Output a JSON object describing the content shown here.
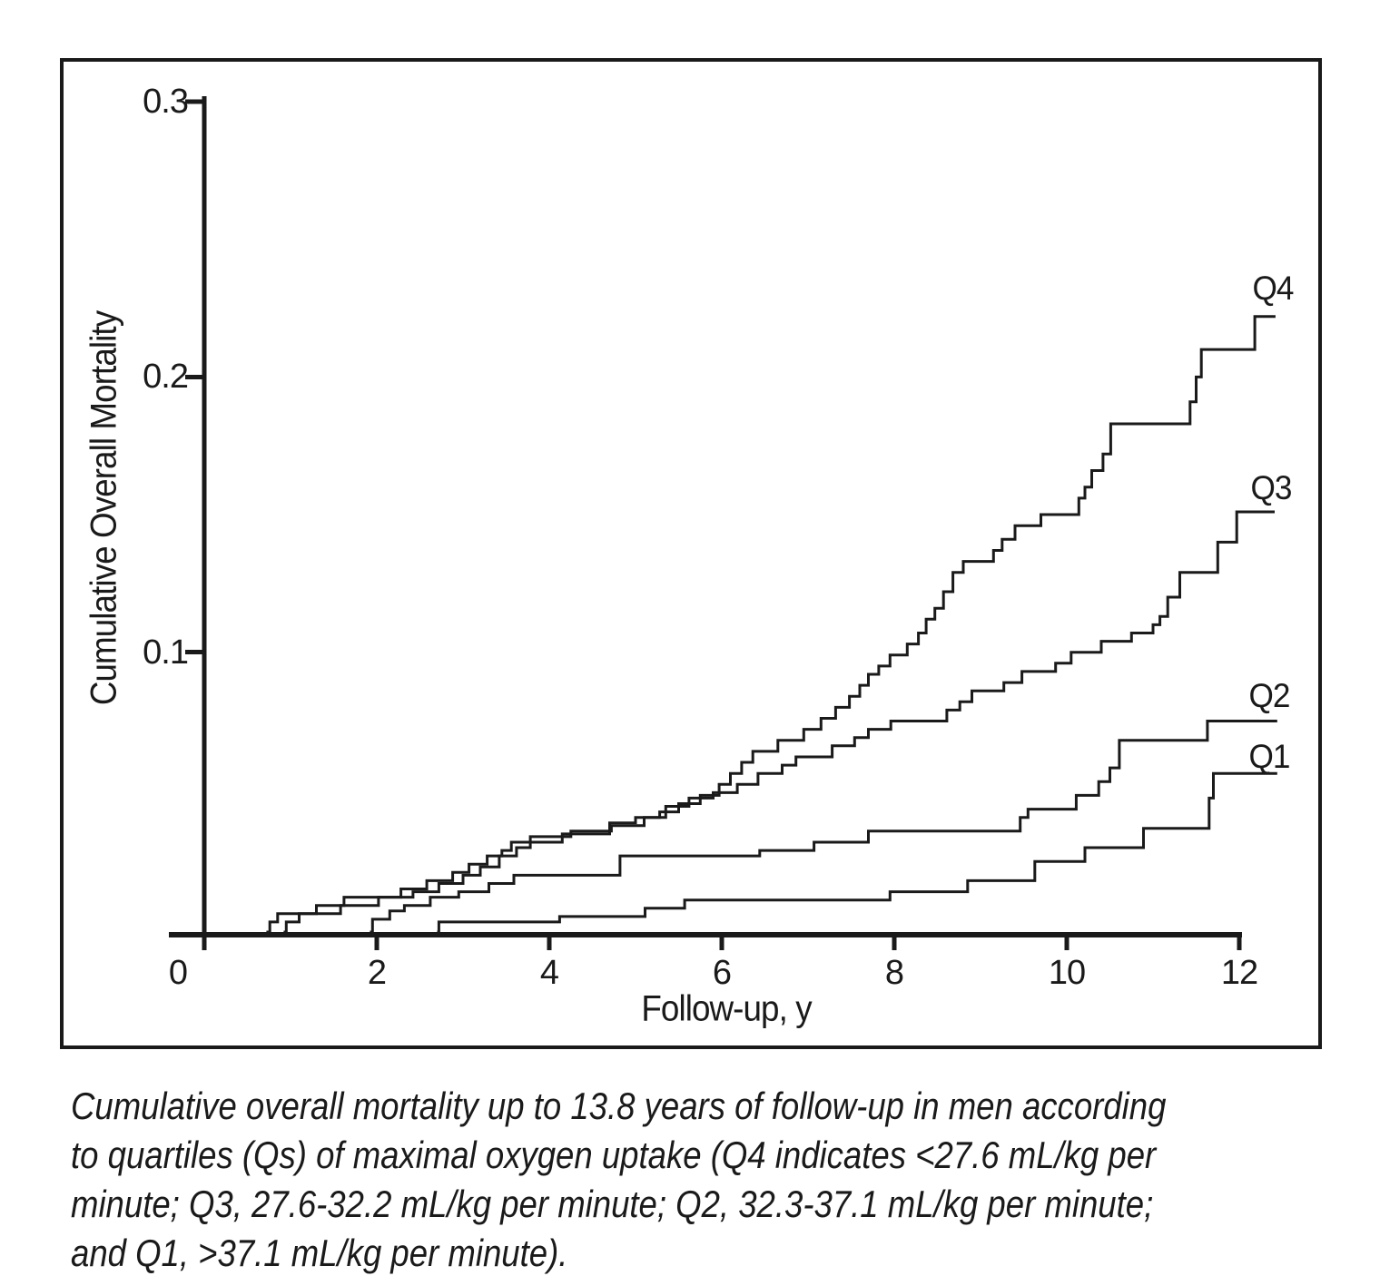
{
  "colors": {
    "ink": "#1a1a1a",
    "background": "#ffffff"
  },
  "chart_data": {
    "type": "line",
    "subtype": "step-function (cumulative mortality curves)",
    "title": "",
    "xlabel": "Follow-up, y",
    "ylabel": "Cumulative Overall Mortality",
    "xlim": [
      0,
      12.9
    ],
    "ylim": [
      0,
      0.3
    ],
    "grid": false,
    "legend_position": "labels at right end of each curve",
    "x_ticks": [
      0,
      2,
      4,
      6,
      8,
      10,
      12
    ],
    "x_tick_labels": [
      "0",
      "2",
      "4",
      "6",
      "8",
      "10",
      "12"
    ],
    "y_ticks": [
      0.3,
      0.2,
      0.1
    ],
    "y_tick_labels": [
      "0.3",
      "0.2",
      "0.1"
    ],
    "series": [
      {
        "name": "Q4",
        "label": "Q4",
        "color": "#1a1a1a",
        "start": 0.72,
        "end": 12.42,
        "final_value": 0.222,
        "steps": [
          [
            0.76,
            0.002
          ],
          [
            0.85,
            0.005
          ],
          [
            1.3,
            0.008
          ],
          [
            1.62,
            0.011
          ],
          [
            2.28,
            0.014
          ],
          [
            2.58,
            0.017
          ],
          [
            2.88,
            0.02
          ],
          [
            3.07,
            0.023
          ],
          [
            3.28,
            0.026
          ],
          [
            3.45,
            0.028
          ],
          [
            3.56,
            0.031
          ],
          [
            4.15,
            0.034
          ],
          [
            4.7,
            0.038
          ],
          [
            5.0,
            0.04
          ],
          [
            5.28,
            0.042
          ],
          [
            5.5,
            0.045
          ],
          [
            5.75,
            0.048
          ],
          [
            5.97,
            0.052
          ],
          [
            6.1,
            0.056
          ],
          [
            6.23,
            0.06
          ],
          [
            6.36,
            0.064
          ],
          [
            6.65,
            0.068
          ],
          [
            6.95,
            0.072
          ],
          [
            7.15,
            0.076
          ],
          [
            7.32,
            0.08
          ],
          [
            7.48,
            0.084
          ],
          [
            7.6,
            0.088
          ],
          [
            7.7,
            0.092
          ],
          [
            7.82,
            0.095
          ],
          [
            7.95,
            0.099
          ],
          [
            8.15,
            0.103
          ],
          [
            8.28,
            0.107
          ],
          [
            8.37,
            0.112
          ],
          [
            8.47,
            0.116
          ],
          [
            8.57,
            0.122
          ],
          [
            8.68,
            0.129
          ],
          [
            8.8,
            0.133
          ],
          [
            9.15,
            0.137
          ],
          [
            9.25,
            0.141
          ],
          [
            9.4,
            0.146
          ],
          [
            9.7,
            0.15
          ],
          [
            10.14,
            0.156
          ],
          [
            10.21,
            0.16
          ],
          [
            10.29,
            0.166
          ],
          [
            10.42,
            0.172
          ],
          [
            10.51,
            0.183
          ],
          [
            11.43,
            0.191
          ],
          [
            11.5,
            0.2
          ],
          [
            11.56,
            0.21
          ],
          [
            12.18,
            0.222
          ]
        ]
      },
      {
        "name": "Q3",
        "label": "Q3",
        "color": "#1a1a1a",
        "start": 0.92,
        "end": 12.41,
        "final_value": 0.151,
        "steps": [
          [
            0.95,
            0.002
          ],
          [
            1.1,
            0.005
          ],
          [
            1.58,
            0.008
          ],
          [
            2.02,
            0.011
          ],
          [
            2.42,
            0.013
          ],
          [
            2.72,
            0.016
          ],
          [
            3.0,
            0.019
          ],
          [
            3.2,
            0.022
          ],
          [
            3.42,
            0.026
          ],
          [
            3.62,
            0.029
          ],
          [
            3.78,
            0.033
          ],
          [
            4.25,
            0.035
          ],
          [
            4.72,
            0.037
          ],
          [
            5.1,
            0.04
          ],
          [
            5.35,
            0.044
          ],
          [
            5.62,
            0.047
          ],
          [
            5.9,
            0.049
          ],
          [
            6.18,
            0.052
          ],
          [
            6.42,
            0.056
          ],
          [
            6.7,
            0.059
          ],
          [
            6.86,
            0.062
          ],
          [
            7.28,
            0.066
          ],
          [
            7.54,
            0.069
          ],
          [
            7.7,
            0.072
          ],
          [
            7.96,
            0.075
          ],
          [
            8.61,
            0.079
          ],
          [
            8.76,
            0.082
          ],
          [
            8.9,
            0.086
          ],
          [
            9.27,
            0.089
          ],
          [
            9.48,
            0.093
          ],
          [
            9.87,
            0.096
          ],
          [
            10.05,
            0.1
          ],
          [
            10.4,
            0.104
          ],
          [
            10.75,
            0.107
          ],
          [
            11.0,
            0.11
          ],
          [
            11.08,
            0.113
          ],
          [
            11.17,
            0.12
          ],
          [
            11.31,
            0.129
          ],
          [
            11.75,
            0.14
          ],
          [
            11.97,
            0.151
          ]
        ]
      },
      {
        "name": "Q2",
        "label": "Q2",
        "color": "#1a1a1a",
        "start": 1.92,
        "end": 12.44,
        "final_value": 0.075,
        "steps": [
          [
            1.95,
            0.003
          ],
          [
            2.15,
            0.006
          ],
          [
            2.32,
            0.008
          ],
          [
            2.62,
            0.011
          ],
          [
            2.95,
            0.013
          ],
          [
            3.3,
            0.016
          ],
          [
            3.59,
            0.019
          ],
          [
            4.82,
            0.026
          ],
          [
            6.44,
            0.028
          ],
          [
            7.07,
            0.031
          ],
          [
            7.7,
            0.035
          ],
          [
            9.46,
            0.04
          ],
          [
            9.55,
            0.043
          ],
          [
            10.11,
            0.048
          ],
          [
            10.37,
            0.053
          ],
          [
            10.5,
            0.058
          ],
          [
            10.61,
            0.068
          ],
          [
            11.63,
            0.075
          ]
        ]
      },
      {
        "name": "Q1",
        "label": "Q1",
        "color": "#1a1a1a",
        "start": 2.7,
        "end": 12.44,
        "final_value": 0.056,
        "steps": [
          [
            2.72,
            0.002
          ],
          [
            4.12,
            0.004
          ],
          [
            5.11,
            0.007
          ],
          [
            5.57,
            0.01
          ],
          [
            7.95,
            0.013
          ],
          [
            8.85,
            0.017
          ],
          [
            9.63,
            0.024
          ],
          [
            10.21,
            0.029
          ],
          [
            10.89,
            0.036
          ],
          [
            11.65,
            0.047
          ],
          [
            11.7,
            0.056
          ]
        ]
      }
    ]
  },
  "caption": {
    "lines": [
      "Cumulative overall mortality up to 13.8 years of follow-up in men according",
      "to quartiles (Qs) of maximal oxygen uptake (Q4 indicates <27.6 mL/kg per",
      "minute; Q3, 27.6-32.2 mL/kg per minute; Q2, 32.3-37.1 mL/kg per minute;",
      "and Q1, >37.1 mL/kg per minute)."
    ]
  }
}
